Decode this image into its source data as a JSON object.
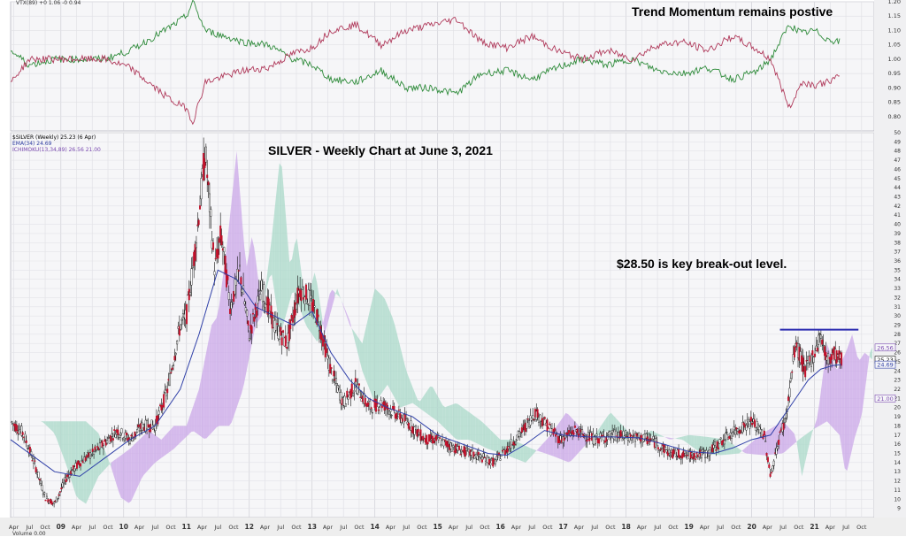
{
  "annotations": {
    "top": "Trend Momentum remains postive",
    "title": "SILVER - Weekly Chart at June 3, 2021",
    "breakout": "$28.50 is key break-out level."
  },
  "legend": {
    "symbol": "$SILVER (Weekly) 25.23 (6 Apr)",
    "ema": "EMA(34) 24.69",
    "ichimoku": "ICHIMOKU(13,34,89) 26.56 21.00",
    "indicator": "VTX(89) +0 1.06 -0 0.94",
    "bottom": "Volume 0.00"
  },
  "chart_data": [
    {
      "type": "line",
      "title": "Trend Momentum remains postive",
      "ylim": [
        0.75,
        1.2
      ],
      "y_ticks": [
        "0.80",
        "0.85",
        "0.90",
        "0.95",
        "1.00",
        "1.05",
        "1.10",
        "1.15",
        "1.20"
      ],
      "x_range": [
        2008.2,
        2021.95
      ],
      "series": [
        {
          "name": "+0",
          "color": "#2e8b3a",
          "x": [
            2008.2,
            2008.5,
            2008.9,
            2009.3,
            2009.7,
            2010.1,
            2010.5,
            2010.8,
            2011.0,
            2011.1,
            2011.3,
            2011.6,
            2011.9,
            2012.3,
            2012.7,
            2013.0,
            2013.3,
            2013.7,
            2014.1,
            2014.5,
            2014.9,
            2015.3,
            2015.7,
            2016.1,
            2016.5,
            2016.9,
            2017.3,
            2017.7,
            2018.1,
            2018.5,
            2018.9,
            2019.3,
            2019.7,
            2020.1,
            2020.3,
            2020.6,
            2020.8,
            2021.0,
            2021.2,
            2021.4
          ],
          "values": [
            1.03,
            0.98,
            1.0,
            1.0,
            1.0,
            1.03,
            1.08,
            1.12,
            1.15,
            1.2,
            1.1,
            1.08,
            1.06,
            1.05,
            1.0,
            0.98,
            0.93,
            0.92,
            0.96,
            0.9,
            0.9,
            0.88,
            0.95,
            0.96,
            0.93,
            0.97,
            1.0,
            0.98,
            1.0,
            0.96,
            0.95,
            0.97,
            0.93,
            0.96,
            1.0,
            1.12,
            1.09,
            1.1,
            1.07,
            1.06
          ]
        },
        {
          "name": "-0",
          "color": "#b03a5b",
          "x": [
            2008.2,
            2008.5,
            2008.9,
            2009.3,
            2009.7,
            2010.1,
            2010.5,
            2010.8,
            2011.0,
            2011.1,
            2011.3,
            2011.6,
            2011.9,
            2012.3,
            2012.7,
            2013.0,
            2013.3,
            2013.7,
            2014.1,
            2014.5,
            2014.9,
            2015.3,
            2015.7,
            2016.1,
            2016.5,
            2016.9,
            2017.3,
            2017.7,
            2018.1,
            2018.5,
            2018.9,
            2019.3,
            2019.7,
            2020.1,
            2020.3,
            2020.6,
            2020.8,
            2021.0,
            2021.2,
            2021.4
          ],
          "values": [
            0.92,
            1.0,
            1.0,
            1.0,
            1.0,
            0.97,
            0.9,
            0.85,
            0.83,
            0.78,
            0.92,
            0.94,
            0.96,
            0.97,
            1.02,
            1.04,
            1.1,
            1.12,
            1.05,
            1.1,
            1.12,
            1.14,
            1.06,
            1.04,
            1.08,
            1.03,
            1.0,
            1.03,
            1.0,
            1.05,
            1.06,
            1.03,
            1.08,
            1.03,
            1.0,
            0.83,
            0.92,
            0.91,
            0.92,
            0.94
          ]
        }
      ]
    },
    {
      "type": "candlestick",
      "title": "SILVER - Weekly Chart at June 3, 2021",
      "ylim": [
        8,
        50
      ],
      "y_ticks": [
        9,
        10,
        11,
        12,
        13,
        14,
        15,
        16,
        17,
        18,
        19,
        20,
        21,
        22,
        23,
        24,
        25,
        26,
        27,
        28,
        29,
        30,
        31,
        32,
        33,
        34,
        35,
        36,
        37,
        38,
        39,
        40,
        41,
        42,
        43,
        44,
        45,
        46,
        47,
        48,
        49,
        50
      ],
      "price_labels": [
        "26.56",
        "25.23",
        "24.69",
        "21.00"
      ],
      "x_tick_labels": [
        "Apr",
        "Jul",
        "Oct",
        "09",
        "Apr",
        "Jul",
        "Oct",
        "10",
        "Apr",
        "Jul",
        "Oct",
        "11",
        "Apr",
        "Jul",
        "Oct",
        "12",
        "Apr",
        "Jul",
        "Oct",
        "13",
        "Apr",
        "Jul",
        "Oct",
        "14",
        "Apr",
        "Jul",
        "Oct",
        "15",
        "Apr",
        "Jul",
        "Oct",
        "16",
        "Apr",
        "Jul",
        "Oct",
        "17",
        "Apr",
        "Jul",
        "Oct",
        "18",
        "Apr",
        "Jul",
        "Oct",
        "19",
        "Apr",
        "Jul",
        "Oct",
        "20",
        "Apr",
        "Jul",
        "Oct",
        "21",
        "Apr",
        "Jul",
        "Oct"
      ],
      "x_range": [
        2008.2,
        2021.95
      ],
      "price_path": {
        "x": [
          2008.2,
          2008.4,
          2008.6,
          2008.75,
          2008.9,
          2009.1,
          2009.3,
          2009.6,
          2009.9,
          2010.1,
          2010.3,
          2010.5,
          2010.7,
          2010.9,
          2011.0,
          2011.15,
          2011.3,
          2011.45,
          2011.55,
          2011.7,
          2011.85,
          2012.0,
          2012.2,
          2012.4,
          2012.6,
          2012.8,
          2012.95,
          2013.1,
          2013.3,
          2013.5,
          2013.7,
          2013.9,
          2014.1,
          2014.3,
          2014.5,
          2014.8,
          2015.0,
          2015.3,
          2015.6,
          2015.9,
          2016.1,
          2016.3,
          2016.55,
          2016.75,
          2016.95,
          2017.2,
          2017.5,
          2017.8,
          2018.1,
          2018.4,
          2018.7,
          2019.0,
          2019.3,
          2019.55,
          2019.75,
          2020.0,
          2020.2,
          2020.3,
          2020.45,
          2020.55,
          2020.7,
          2020.85,
          2021.0,
          2021.1,
          2021.2,
          2021.3,
          2021.43
        ],
        "values": [
          18.5,
          17.2,
          13.5,
          10.2,
          9.5,
          12.5,
          14,
          15.5,
          17.5,
          16.5,
          18,
          18,
          22,
          29,
          30,
          38,
          48,
          35,
          39,
          31,
          35,
          28,
          33,
          29,
          27,
          33,
          32,
          29.5,
          24,
          20.5,
          22.5,
          20,
          20.5,
          19.5,
          18.5,
          16.5,
          16.5,
          15.5,
          14.8,
          14,
          15.5,
          17,
          19.5,
          18,
          16.5,
          17.5,
          16.5,
          17,
          16.8,
          16.5,
          15,
          14.8,
          15,
          16.5,
          17.5,
          18.5,
          17,
          12.5,
          17,
          19,
          27,
          24,
          26,
          28,
          25,
          26,
          25.2
        ]
      },
      "ema": {
        "name": "EMA(34)",
        "x": [
          2008.2,
          2008.6,
          2008.9,
          2009.3,
          2009.7,
          2010.1,
          2010.5,
          2010.9,
          2011.2,
          2011.5,
          2011.8,
          2012.1,
          2012.4,
          2012.7,
          2013.0,
          2013.3,
          2013.6,
          2013.9,
          2014.2,
          2014.6,
          2015.0,
          2015.4,
          2015.8,
          2016.1,
          2016.4,
          2016.7,
          2017.0,
          2017.4,
          2017.8,
          2018.2,
          2018.6,
          2019.0,
          2019.4,
          2019.7,
          2020.0,
          2020.3,
          2020.5,
          2020.7,
          2020.9,
          2021.1,
          2021.3,
          2021.43
        ],
        "values": [
          16.5,
          14.5,
          13,
          12.5,
          14.5,
          16.5,
          18,
          22,
          28,
          35,
          34,
          31,
          30,
          29,
          30.5,
          26,
          23,
          21,
          20,
          19,
          17,
          16,
          15,
          14.8,
          16,
          17.5,
          17,
          16.8,
          16.8,
          16.7,
          16,
          15.2,
          15,
          15.6,
          16.5,
          17,
          19,
          21,
          23,
          24.2,
          24.6,
          24.69
        ]
      },
      "key_level": {
        "label": "$28.50 is key break-out level.",
        "value": 28.5,
        "x": [
          2020.45,
          2021.7
        ]
      }
    }
  ]
}
